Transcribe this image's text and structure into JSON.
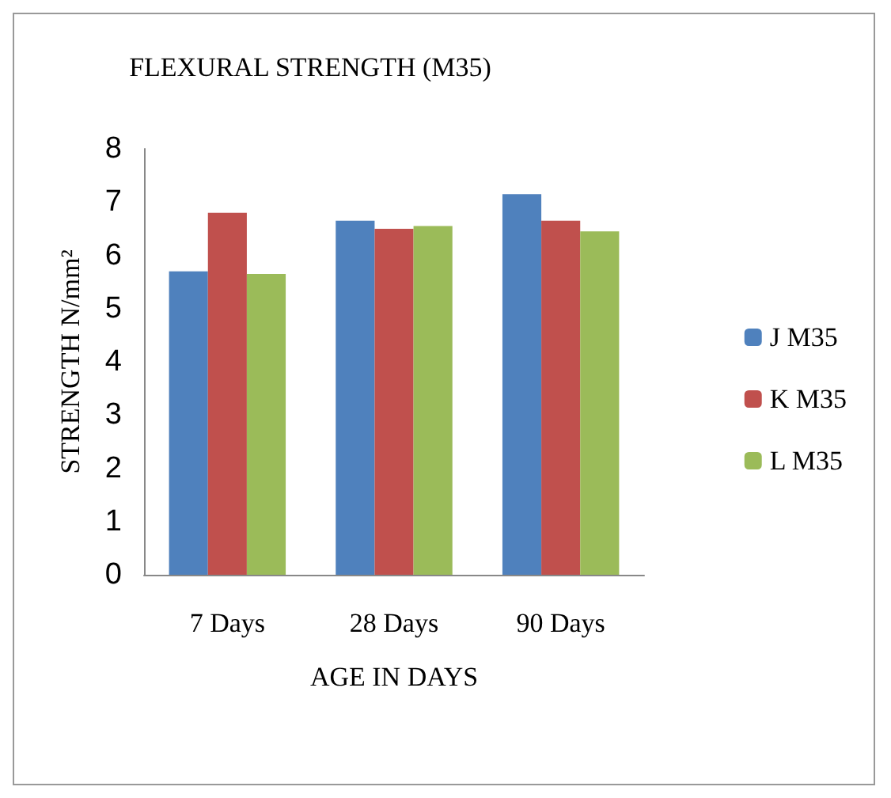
{
  "chart_data": {
    "type": "bar",
    "title": "FLEXURAL STRENGTH (M35)",
    "xlabel": "AGE IN DAYS",
    "ylabel": "STRENGTH N/mm²",
    "categories": [
      "7 Days",
      "28 Days",
      "90 Days"
    ],
    "series": [
      {
        "name": "J M35",
        "color": "#4f81bd",
        "values": [
          5.7,
          6.65,
          7.15
        ]
      },
      {
        "name": "K M35",
        "color": "#c0504d",
        "values": [
          6.8,
          6.5,
          6.65
        ]
      },
      {
        "name": "L M35",
        "color": "#9bbb59",
        "values": [
          5.65,
          6.55,
          6.45
        ]
      }
    ],
    "ylim": [
      0,
      8
    ],
    "yticks": [
      0,
      1,
      2,
      3,
      4,
      5,
      6,
      7,
      8
    ],
    "grid": false,
    "legend": "right"
  }
}
